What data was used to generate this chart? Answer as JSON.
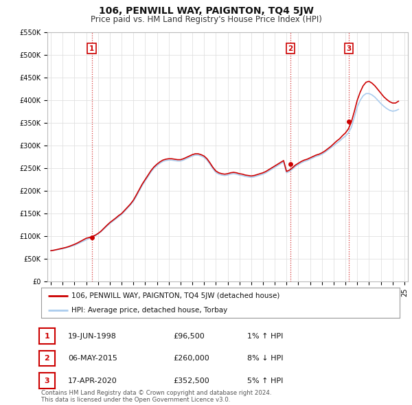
{
  "title": "106, PENWILL WAY, PAIGNTON, TQ4 5JW",
  "subtitle": "Price paid vs. HM Land Registry's House Price Index (HPI)",
  "ylim": [
    0,
    550000
  ],
  "yticks": [
    0,
    50000,
    100000,
    150000,
    200000,
    250000,
    300000,
    350000,
    400000,
    450000,
    500000,
    550000
  ],
  "ytick_labels": [
    "£0",
    "£50K",
    "£100K",
    "£150K",
    "£200K",
    "£250K",
    "£300K",
    "£350K",
    "£400K",
    "£450K",
    "£500K",
    "£550K"
  ],
  "xlim_start": 1994.7,
  "xlim_end": 2025.3,
  "hpi_years": [
    1995.0,
    1995.25,
    1995.5,
    1995.75,
    1996.0,
    1996.25,
    1996.5,
    1996.75,
    1997.0,
    1997.25,
    1997.5,
    1997.75,
    1998.0,
    1998.25,
    1998.5,
    1998.75,
    1999.0,
    1999.25,
    1999.5,
    1999.75,
    2000.0,
    2000.25,
    2000.5,
    2000.75,
    2001.0,
    2001.25,
    2001.5,
    2001.75,
    2002.0,
    2002.25,
    2002.5,
    2002.75,
    2003.0,
    2003.25,
    2003.5,
    2003.75,
    2004.0,
    2004.25,
    2004.5,
    2004.75,
    2005.0,
    2005.25,
    2005.5,
    2005.75,
    2006.0,
    2006.25,
    2006.5,
    2006.75,
    2007.0,
    2007.25,
    2007.5,
    2007.75,
    2008.0,
    2008.25,
    2008.5,
    2008.75,
    2009.0,
    2009.25,
    2009.5,
    2009.75,
    2010.0,
    2010.25,
    2010.5,
    2010.75,
    2011.0,
    2011.25,
    2011.5,
    2011.75,
    2012.0,
    2012.25,
    2012.5,
    2012.75,
    2013.0,
    2013.25,
    2013.5,
    2013.75,
    2014.0,
    2014.25,
    2014.5,
    2014.75,
    2015.0,
    2015.25,
    2015.5,
    2015.75,
    2016.0,
    2016.25,
    2016.5,
    2016.75,
    2017.0,
    2017.25,
    2017.5,
    2017.75,
    2018.0,
    2018.25,
    2018.5,
    2018.75,
    2019.0,
    2019.25,
    2019.5,
    2019.75,
    2020.0,
    2020.25,
    2020.5,
    2020.75,
    2021.0,
    2021.25,
    2021.5,
    2021.75,
    2022.0,
    2022.25,
    2022.5,
    2022.75,
    2023.0,
    2023.25,
    2023.5,
    2023.75,
    2024.0,
    2024.25,
    2024.5
  ],
  "hpi_values": [
    68000,
    69000,
    70000,
    71000,
    72500,
    74000,
    76000,
    78000,
    80000,
    83000,
    86000,
    89000,
    92000,
    95000,
    98000,
    101000,
    105000,
    110000,
    116000,
    122000,
    128000,
    133000,
    138000,
    143000,
    148000,
    155000,
    162000,
    169000,
    177000,
    188000,
    200000,
    212000,
    222000,
    232000,
    242000,
    250000,
    256000,
    261000,
    265000,
    267000,
    268000,
    268000,
    267000,
    266000,
    266000,
    268000,
    271000,
    274000,
    277000,
    279000,
    279000,
    277000,
    274000,
    268000,
    259000,
    249000,
    241000,
    237000,
    235000,
    234000,
    235000,
    237000,
    238000,
    237000,
    235000,
    234000,
    232000,
    231000,
    230000,
    231000,
    233000,
    235000,
    237000,
    240000,
    244000,
    248000,
    252000,
    256000,
    260000,
    264000,
    240000,
    243000,
    248000,
    254000,
    258000,
    262000,
    265000,
    267000,
    270000,
    273000,
    276000,
    278000,
    281000,
    285000,
    290000,
    295000,
    300000,
    305000,
    310000,
    316000,
    321000,
    328000,
    340000,
    362000,
    385000,
    400000,
    410000,
    415000,
    415000,
    412000,
    407000,
    400000,
    393000,
    387000,
    382000,
    378000,
    376000,
    377000,
    380000
  ],
  "property_years": [
    1995.0,
    1995.25,
    1995.5,
    1995.75,
    1996.0,
    1996.25,
    1996.5,
    1996.75,
    1997.0,
    1997.25,
    1997.5,
    1997.75,
    1998.0,
    1998.25,
    1998.5,
    1998.75,
    1999.0,
    1999.25,
    1999.5,
    1999.75,
    2000.0,
    2000.25,
    2000.5,
    2000.75,
    2001.0,
    2001.25,
    2001.5,
    2001.75,
    2002.0,
    2002.25,
    2002.5,
    2002.75,
    2003.0,
    2003.25,
    2003.5,
    2003.75,
    2004.0,
    2004.25,
    2004.5,
    2004.75,
    2005.0,
    2005.25,
    2005.5,
    2005.75,
    2006.0,
    2006.25,
    2006.5,
    2006.75,
    2007.0,
    2007.25,
    2007.5,
    2007.75,
    2008.0,
    2008.25,
    2008.5,
    2008.75,
    2009.0,
    2009.25,
    2009.5,
    2009.75,
    2010.0,
    2010.25,
    2010.5,
    2010.75,
    2011.0,
    2011.25,
    2011.5,
    2011.75,
    2012.0,
    2012.25,
    2012.5,
    2012.75,
    2013.0,
    2013.25,
    2013.5,
    2013.75,
    2014.0,
    2014.25,
    2014.5,
    2014.75,
    2015.0,
    2015.25,
    2015.5,
    2015.75,
    2016.0,
    2016.25,
    2016.5,
    2016.75,
    2017.0,
    2017.25,
    2017.5,
    2017.75,
    2018.0,
    2018.25,
    2018.5,
    2018.75,
    2019.0,
    2019.25,
    2019.5,
    2019.75,
    2020.0,
    2020.25,
    2020.5,
    2020.75,
    2021.0,
    2021.25,
    2021.5,
    2021.75,
    2022.0,
    2022.25,
    2022.5,
    2022.75,
    2023.0,
    2023.25,
    2023.5,
    2023.75,
    2024.0,
    2024.25,
    2024.5
  ],
  "property_values": [
    68000,
    69000,
    70500,
    72000,
    73500,
    75000,
    77000,
    79500,
    82000,
    85000,
    88500,
    92000,
    95500,
    97000,
    99500,
    102000,
    106000,
    111000,
    117500,
    124000,
    130000,
    135000,
    140000,
    145500,
    150000,
    157000,
    164000,
    171000,
    179500,
    191000,
    203000,
    215000,
    225000,
    235000,
    245000,
    253000,
    259000,
    264000,
    268000,
    270000,
    271000,
    271000,
    270000,
    269000,
    269000,
    271000,
    274000,
    277000,
    280000,
    282000,
    282000,
    280000,
    277000,
    271000,
    262000,
    252000,
    244000,
    240000,
    238000,
    237000,
    238000,
    240000,
    241000,
    240000,
    238000,
    237000,
    235000,
    234000,
    233000,
    234000,
    236000,
    238000,
    240000,
    243000,
    247000,
    251000,
    255000,
    259000,
    263000,
    267000,
    243000,
    246000,
    251000,
    257000,
    261000,
    265000,
    268000,
    270000,
    273000,
    276000,
    279000,
    281000,
    284000,
    288000,
    293000,
    298000,
    304000,
    310000,
    315000,
    322000,
    328000,
    337000,
    352000,
    375000,
    400000,
    418000,
    432000,
    440000,
    442000,
    438000,
    432000,
    424000,
    416000,
    408000,
    402000,
    397000,
    394000,
    394000,
    398000
  ],
  "transaction1_year": 1998.47,
  "transaction1_value": 96500,
  "transaction1_label": "1",
  "transaction2_year": 2015.34,
  "transaction2_value": 260000,
  "transaction2_label": "2",
  "transaction3_year": 2020.29,
  "transaction3_value": 352500,
  "transaction3_label": "3",
  "line_color_property": "#cc0000",
  "line_color_hpi": "#aaccee",
  "marker_color": "#cc0000",
  "dashed_line_color": "#cc0000",
  "legend_label_property": "106, PENWILL WAY, PAIGNTON, TQ4 5JW (detached house)",
  "legend_label_hpi": "HPI: Average price, detached house, Torbay",
  "table_rows": [
    [
      "1",
      "19-JUN-1998",
      "£96,500",
      "1% ↑ HPI"
    ],
    [
      "2",
      "06-MAY-2015",
      "£260,000",
      "8% ↓ HPI"
    ],
    [
      "3",
      "17-APR-2020",
      "£352,500",
      "5% ↑ HPI"
    ]
  ],
  "footer_text": "Contains HM Land Registry data © Crown copyright and database right 2024.\nThis data is licensed under the Open Government Licence v3.0.",
  "bg_color": "#ffffff",
  "grid_color": "#e0e0e0",
  "title_fontsize": 10,
  "subtitle_fontsize": 8.5,
  "axis_fontsize": 7
}
